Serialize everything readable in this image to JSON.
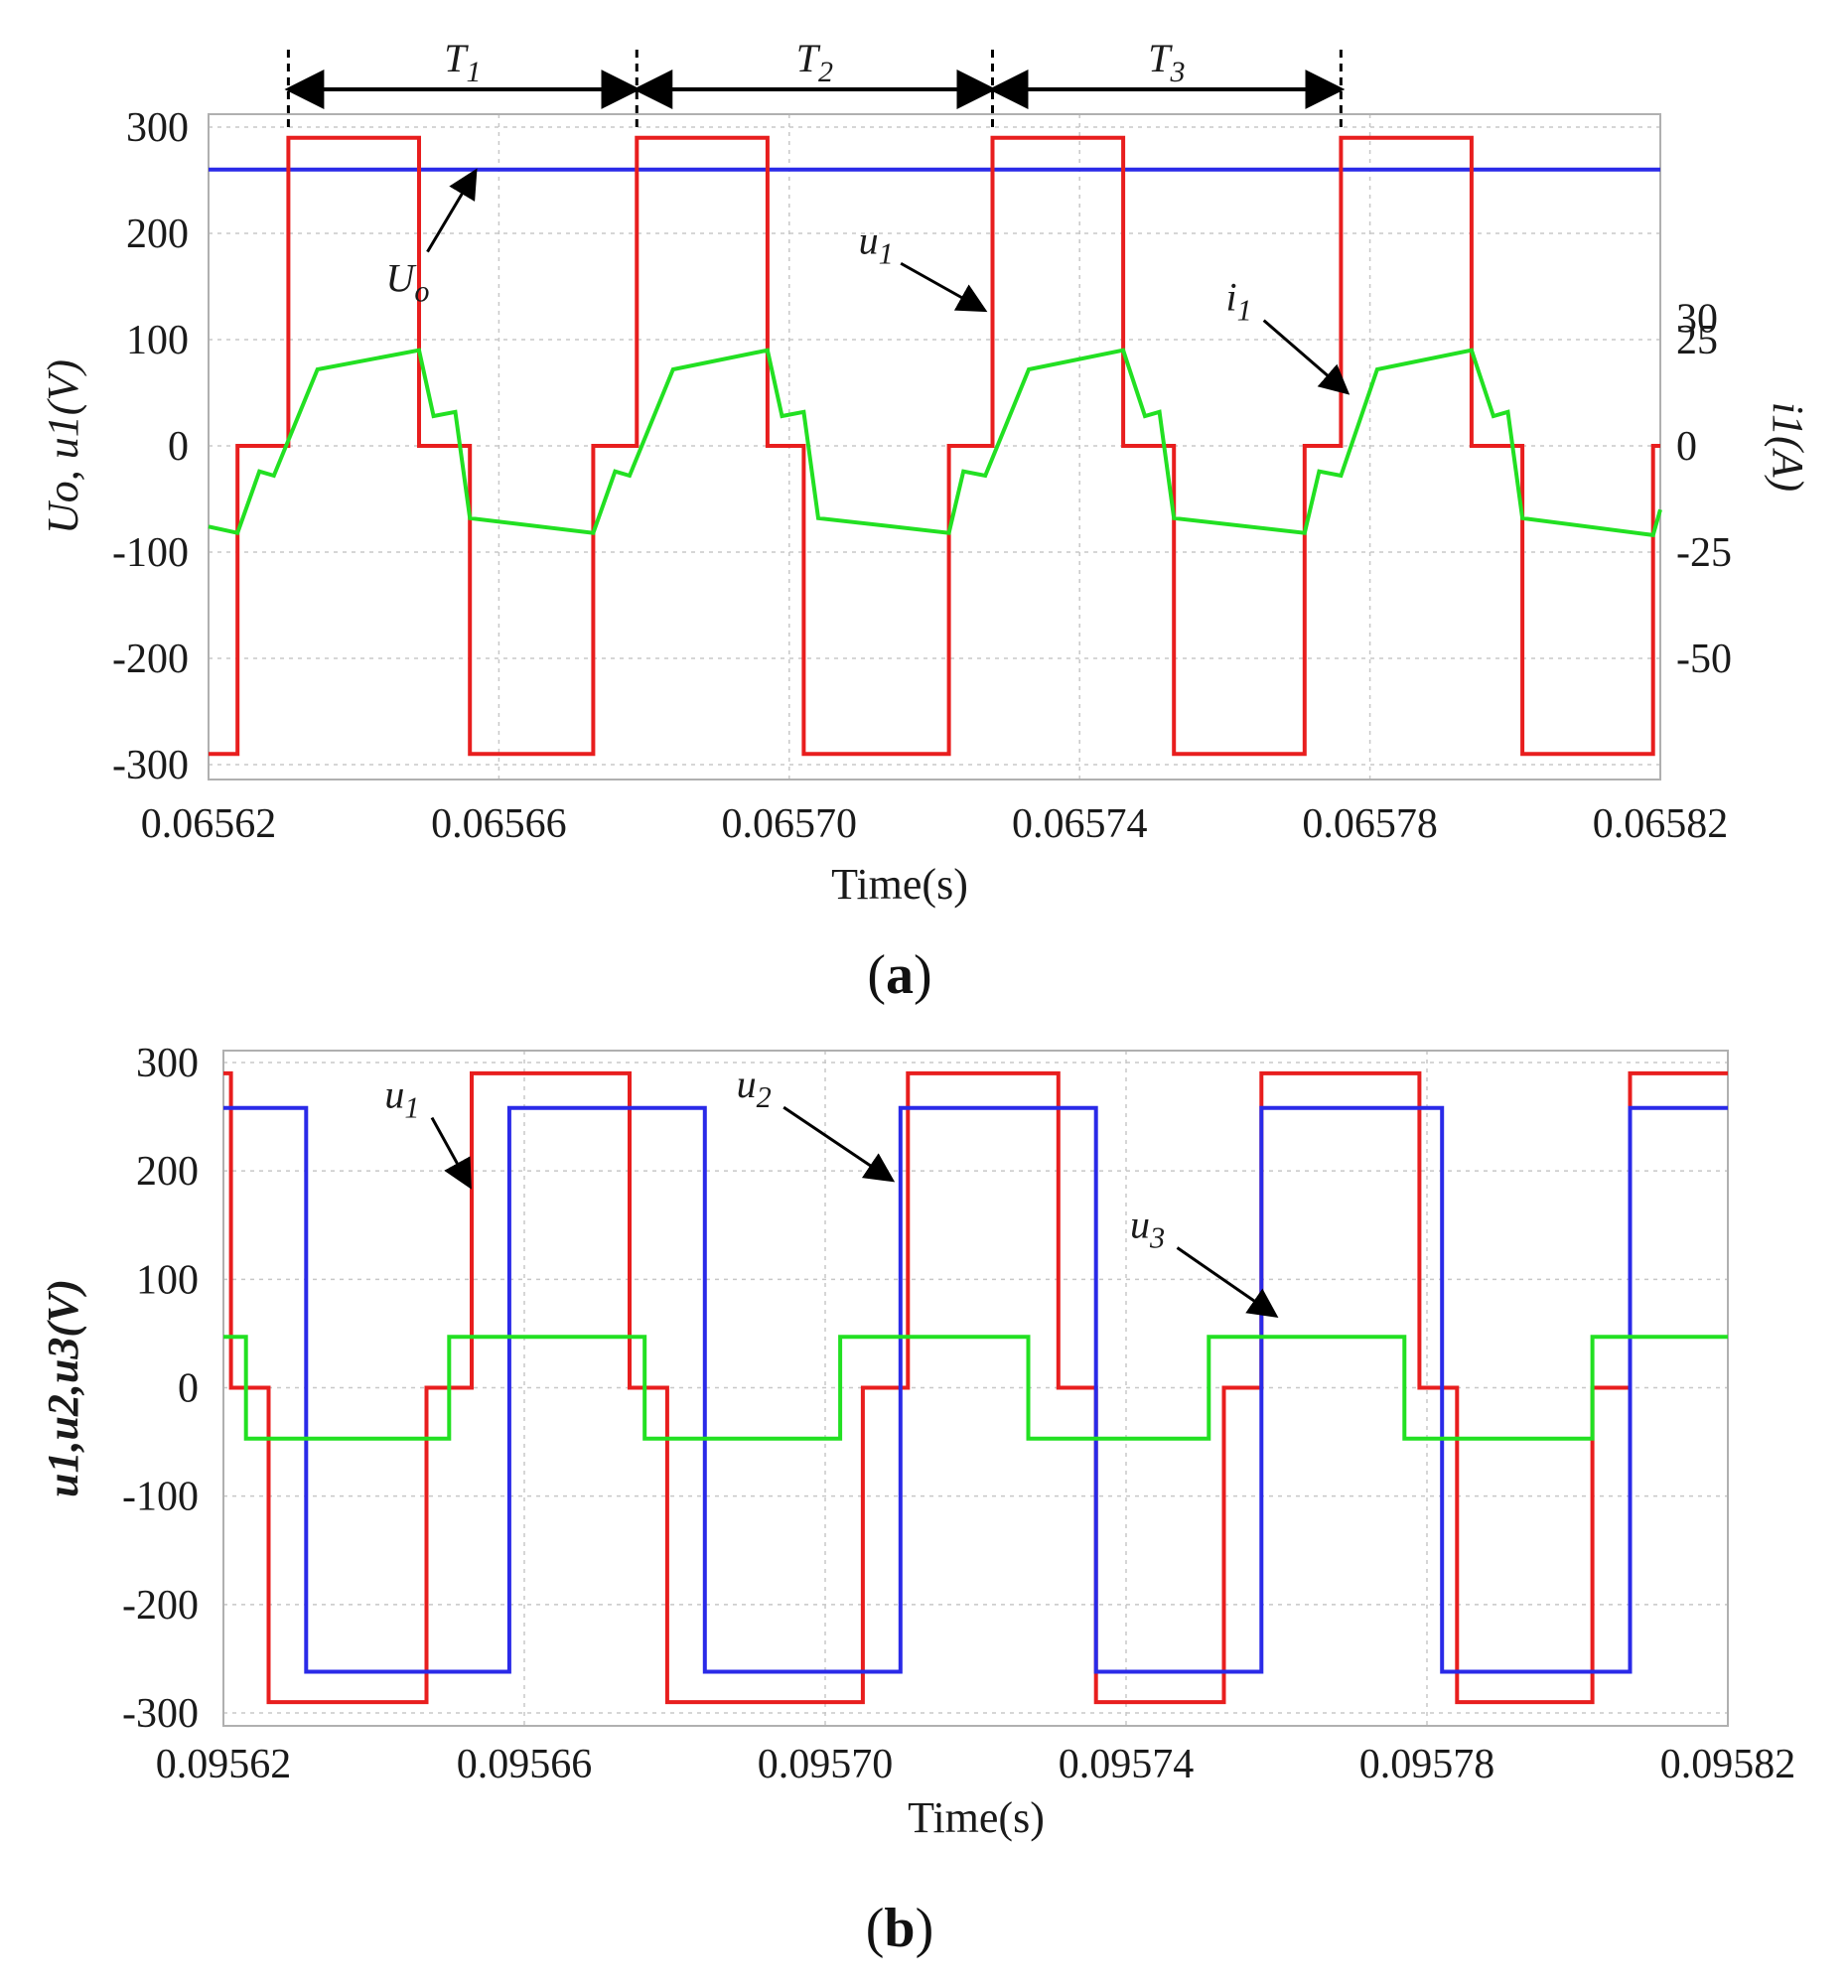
{
  "chart_data": [
    {
      "id": "a",
      "type": "line",
      "caption": "a",
      "xlabel": "Time(s)",
      "xlim": [
        0.06562,
        0.06582
      ],
      "xticks": [
        "0.06562",
        "0.06566",
        "0.06570",
        "0.06574",
        "0.06578",
        "0.06582"
      ],
      "xtick_values": [
        0.06562,
        0.06566,
        0.0657,
        0.06574,
        0.06578,
        0.06582
      ],
      "ylabel_left": "Uo, u1(V)",
      "ylim_left": [
        -300,
        300
      ],
      "yticks_left": [
        300,
        200,
        100,
        0,
        -100,
        -200,
        -300
      ],
      "ylabel_right": "i1(A)",
      "ylim_right": [
        -75,
        75
      ],
      "yticks_right": [
        30,
        25,
        0,
        -25,
        -50
      ],
      "periods": [
        {
          "label": "T1",
          "x_start": 0.065631,
          "x_end": 0.065679
        },
        {
          "label": "T2",
          "x_start": 0.065679,
          "x_end": 0.065728
        },
        {
          "label": "T3",
          "x_start": 0.065728,
          "x_end": 0.065776
        }
      ],
      "series": [
        {
          "name": "Uo",
          "axis": "left",
          "color": "#2a2ae8",
          "x": [
            0.06562,
            0.06582
          ],
          "y": [
            260,
            260
          ]
        },
        {
          "name": "u1",
          "axis": "left",
          "color": "#e81e1e",
          "x": [
            0.06562,
            0.065624,
            0.065624,
            0.065631,
            0.065631,
            0.065649,
            0.065649,
            0.065656,
            0.065656,
            0.065673,
            0.065673,
            0.065679,
            0.065679,
            0.065697,
            0.065697,
            0.065702,
            0.065702,
            0.065722,
            0.065722,
            0.065728,
            0.065728,
            0.065746,
            0.065746,
            0.065753,
            0.065753,
            0.065771,
            0.065771,
            0.065776,
            0.065776,
            0.065794,
            0.065794,
            0.065801,
            0.065801,
            0.065819,
            0.065819,
            0.06582
          ],
          "y": [
            -290,
            -290,
            0,
            0,
            290,
            290,
            0,
            0,
            -290,
            -290,
            0,
            0,
            290,
            290,
            0,
            0,
            -290,
            -290,
            0,
            0,
            290,
            290,
            0,
            0,
            -290,
            -290,
            0,
            0,
            290,
            290,
            0,
            0,
            -290,
            -290,
            0,
            0
          ]
        },
        {
          "name": "i1",
          "axis": "right",
          "color": "#22e022",
          "x": [
            0.06562,
            0.065624,
            0.065627,
            0.065629,
            0.065635,
            0.065649,
            0.065651,
            0.065654,
            0.065656,
            0.065673,
            0.065676,
            0.065678,
            0.065684,
            0.065697,
            0.065699,
            0.065702,
            0.065704,
            0.065722,
            0.065724,
            0.065727,
            0.065733,
            0.065746,
            0.065749,
            0.065751,
            0.065753,
            0.065771,
            0.065773,
            0.065776,
            0.065781,
            0.065794,
            0.065797,
            0.065799,
            0.065801,
            0.065819,
            0.06582
          ],
          "y": [
            -19,
            -20.5,
            -6,
            -7,
            18,
            22.5,
            7,
            8,
            -17,
            -20.5,
            -6,
            -7,
            18,
            22.5,
            7,
            8,
            -17,
            -20.5,
            -6,
            -7,
            18,
            22.5,
            7,
            8,
            -17,
            -20.5,
            -6,
            -7,
            18,
            22.5,
            7,
            8,
            -17,
            -21,
            -15
          ]
        }
      ],
      "annotations": [
        {
          "text": "Uo",
          "x": 0.065657,
          "y": 262
        },
        {
          "text": "u1",
          "x": 0.065727,
          "y": 125
        },
        {
          "text": "i1",
          "x": 0.065777,
          "y": 45
        }
      ]
    },
    {
      "id": "b",
      "type": "line",
      "caption": "b",
      "xlabel": "Time(s)",
      "xlim": [
        0.09562,
        0.09582
      ],
      "xticks": [
        "0.09562",
        "0.09566",
        "0.09570",
        "0.09574",
        "0.09578",
        "0.09582"
      ],
      "xtick_values": [
        0.09562,
        0.09566,
        0.0957,
        0.09574,
        0.09578,
        0.09582
      ],
      "ylabel": "u1,u2,u3(V)",
      "ylim": [
        -300,
        300
      ],
      "yticks": [
        300,
        200,
        100,
        0,
        -100,
        -200,
        -300
      ],
      "series": [
        {
          "name": "u1",
          "color": "#e81e1e",
          "x": [
            0.09562,
            0.095621,
            0.095621,
            0.095626,
            0.095626,
            0.095647,
            0.095647,
            0.095653,
            0.095653,
            0.095674,
            0.095674,
            0.095679,
            0.095679,
            0.095705,
            0.095705,
            0.095711,
            0.095711,
            0.095731,
            0.095731,
            0.095736,
            0.095736,
            0.095753,
            0.095753,
            0.095758,
            0.095758,
            0.095779,
            0.095779,
            0.095784,
            0.095784,
            0.095802,
            0.095802,
            0.095807,
            0.095807,
            0.09582
          ],
          "y": [
            290,
            290,
            0,
            0,
            -290,
            -290,
            0,
            0,
            290,
            290,
            0,
            0,
            -290,
            -290,
            0,
            0,
            290,
            290,
            0,
            0,
            -290,
            -290,
            0,
            0,
            290,
            290,
            0,
            0,
            -290,
            -290,
            0,
            0,
            290,
            290
          ]
        },
        {
          "name": "u2",
          "color": "#2a2ae8",
          "x": [
            0.09562,
            0.095631,
            0.095631,
            0.095658,
            0.095658,
            0.095684,
            0.095684,
            0.09571,
            0.09571,
            0.095736,
            0.095736,
            0.095758,
            0.095758,
            0.095782,
            0.095782,
            0.095807,
            0.095807,
            0.09582
          ],
          "y": [
            258,
            258,
            -262,
            -262,
            258,
            258,
            -262,
            -262,
            258,
            258,
            -262,
            -262,
            258,
            258,
            -262,
            -262,
            258,
            258
          ]
        },
        {
          "name": "u3",
          "color": "#22e022",
          "x": [
            0.09562,
            0.095623,
            0.095623,
            0.09565,
            0.09565,
            0.095676,
            0.095676,
            0.095702,
            0.095702,
            0.095727,
            0.095727,
            0.095751,
            0.095751,
            0.095777,
            0.095777,
            0.095802,
            0.095802,
            0.09582
          ],
          "y": [
            47,
            47,
            -47,
            -47,
            47,
            47,
            -47,
            -47,
            47,
            47,
            -47,
            -47,
            47,
            47,
            -47,
            -47,
            47,
            47
          ]
        }
      ],
      "annotations": [
        {
          "text": "u1",
          "x": 0.095653,
          "y": 185
        },
        {
          "text": "u2",
          "x": 0.095709,
          "y": 190
        },
        {
          "text": "u3",
          "x": 0.09576,
          "y": 65
        }
      ]
    }
  ]
}
